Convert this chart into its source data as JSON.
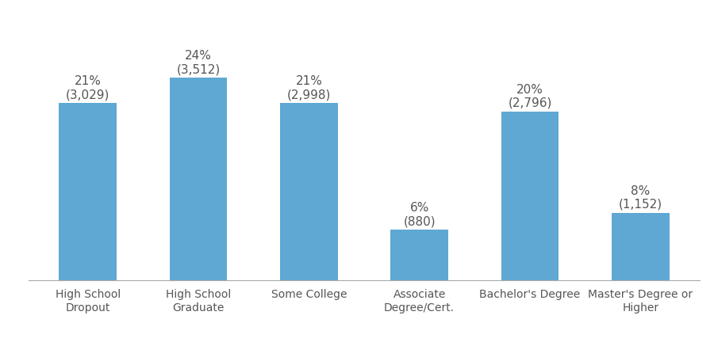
{
  "categories": [
    "High School\nDropout",
    "High School\nGraduate",
    "Some College",
    "Associate\nDegree/Cert.",
    "Bachelor's Degree",
    "Master's Degree or\nHigher"
  ],
  "values": [
    21,
    24,
    21,
    6,
    20,
    8
  ],
  "labels_pct": [
    "21%",
    "24%",
    "21%",
    "6%",
    "20%",
    "8%"
  ],
  "labels_num": [
    "(3,029)",
    "(3,512)",
    "(2,998)",
    "(880)",
    "(2,796)",
    "(1,152)"
  ],
  "bar_color": "#5fa8d3",
  "background_color": "#ffffff",
  "ylim": [
    0,
    30
  ],
  "bar_width": 0.52,
  "label_fontsize": 11,
  "tick_fontsize": 10,
  "label_color": "#555555",
  "spine_color": "#aaaaaa"
}
